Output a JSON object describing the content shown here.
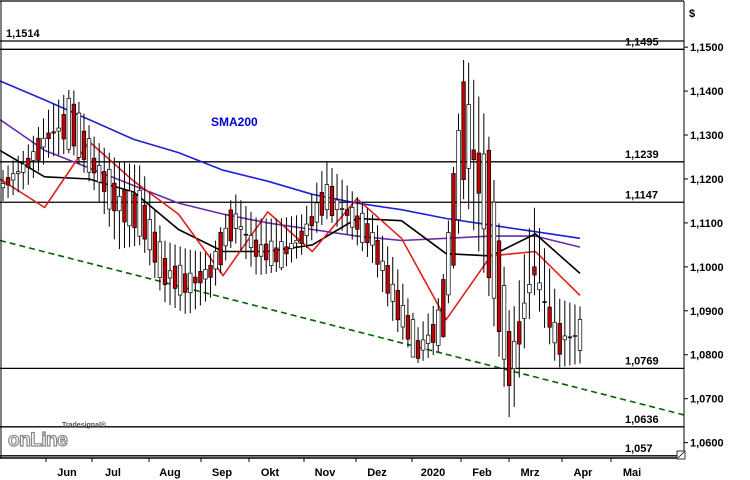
{
  "chart_data": {
    "type": "candlestick",
    "currency_label": "$",
    "y_ticks": [
      "1,1500",
      "1,1400",
      "1,1300",
      "1,1200",
      "1,1100",
      "1,1000",
      "1,0900",
      "1,0800",
      "1,0700",
      "1,0600"
    ],
    "x_ticks": [
      "Jun",
      "Jul",
      "Aug",
      "Sep",
      "Okt",
      "Nov",
      "Dez",
      "2020",
      "Feb",
      "Mrz",
      "Apr",
      "Mai"
    ],
    "ylim": [
      1.0565,
      1.1605
    ],
    "grid": false,
    "levels": [
      {
        "value": 1.1514,
        "label": "1,1514",
        "side": "left"
      },
      {
        "value": 1.1495,
        "label": "1,1495",
        "side": "right"
      },
      {
        "value": 1.1239,
        "label": "1,1239",
        "side": "right"
      },
      {
        "value": 1.1147,
        "label": "1,1147",
        "side": "right"
      },
      {
        "value": 1.0769,
        "label": "1,0769",
        "side": "right"
      },
      {
        "value": 1.0636,
        "label": "1,0636",
        "side": "right"
      },
      {
        "value": 1.057,
        "label": "1,057",
        "side": "right"
      }
    ],
    "annotations": [
      {
        "text": "SMA200",
        "color": "#0000cc"
      }
    ],
    "trendline": {
      "style": "dashed",
      "color": "#006400",
      "from": {
        "x": "Mai 2019",
        "y": 1.106
      },
      "to": {
        "x": "Mai 2020",
        "y": 1.0663
      }
    },
    "series": [
      {
        "name": "SMA200",
        "color": "#1f1fd8",
        "values": [
          1.1423,
          1.138,
          1.1335,
          1.129,
          1.126,
          1.122,
          1.1195,
          1.1165,
          1.1145,
          1.113,
          1.111,
          1.1095,
          1.108,
          1.1065
        ]
      },
      {
        "color": "#6a2ca8",
        "values": [
          1.1335,
          1.1265,
          1.1225,
          1.1185,
          1.1145,
          1.112,
          1.11,
          1.1085,
          1.107,
          1.106,
          1.1065,
          1.107,
          1.107,
          1.1045
        ]
      },
      {
        "color": "#000000",
        "values": [
          1.1265,
          1.1205,
          1.12,
          1.117,
          1.1085,
          1.1035,
          1.1035,
          1.105,
          1.111,
          1.1105,
          1.103,
          1.1025,
          1.1075,
          1.0985
        ]
      },
      {
        "color": "#e02020",
        "values": [
          1.12,
          1.1135,
          1.1285,
          1.1195,
          1.112,
          1.098,
          1.1125,
          1.1035,
          1.1155,
          1.1065,
          1.088,
          1.1025,
          1.1035,
          1.0935
        ]
      }
    ],
    "ohlc_points": [
      {
        "d": "Mai",
        "o": 1.118,
        "h": 1.122,
        "l": 1.115,
        "c": 1.119
      },
      {
        "d": "Jun",
        "o": 1.122,
        "h": 1.127,
        "l": 1.118,
        "c": 1.124
      },
      {
        "d": "Jun",
        "o": 1.129,
        "h": 1.136,
        "l": 1.125,
        "c": 1.131
      },
      {
        "d": "Jul",
        "o": 1.138,
        "h": 1.141,
        "l": 1.126,
        "c": 1.128
      },
      {
        "d": "Jul",
        "o": 1.124,
        "h": 1.129,
        "l": 1.117,
        "c": 1.121
      },
      {
        "d": "Aug",
        "o": 1.118,
        "h": 1.124,
        "l": 1.104,
        "c": 1.111
      },
      {
        "d": "Aug",
        "o": 1.116,
        "h": 1.123,
        "l": 1.105,
        "c": 1.108
      },
      {
        "d": "Sep",
        "o": 1.102,
        "h": 1.106,
        "l": 1.092,
        "c": 1.096
      },
      {
        "d": "Sep",
        "o": 1.098,
        "h": 1.104,
        "l": 1.089,
        "c": 1.094
      },
      {
        "d": "Okt",
        "o": 1.097,
        "h": 1.103,
        "l": 1.093,
        "c": 1.101
      },
      {
        "d": "Okt",
        "o": 1.109,
        "h": 1.117,
        "l": 1.106,
        "c": 1.113
      },
      {
        "d": "Nov",
        "o": 1.106,
        "h": 1.111,
        "l": 1.098,
        "c": 1.102
      },
      {
        "d": "Nov",
        "o": 1.104,
        "h": 1.111,
        "l": 1.099,
        "c": 1.101
      },
      {
        "d": "Dez",
        "o": 1.106,
        "h": 1.112,
        "l": 1.103,
        "c": 1.108
      },
      {
        "d": "Dez",
        "o": 1.113,
        "h": 1.124,
        "l": 1.111,
        "c": 1.119
      },
      {
        "d": "2020",
        "o": 1.113,
        "h": 1.118,
        "l": 1.107,
        "c": 1.111
      },
      {
        "d": "2020",
        "o": 1.109,
        "h": 1.112,
        "l": 1.101,
        "c": 1.104
      },
      {
        "d": "Feb",
        "o": 1.096,
        "h": 1.101,
        "l": 1.086,
        "c": 1.089
      },
      {
        "d": "Feb",
        "o": 1.083,
        "h": 1.086,
        "l": 1.078,
        "c": 1.079
      },
      {
        "d": "Feb",
        "o": 1.082,
        "h": 1.094,
        "l": 1.081,
        "c": 1.092
      },
      {
        "d": "Mrz",
        "o": 1.121,
        "h": 1.1495,
        "l": 1.117,
        "c": 1.145
      },
      {
        "d": "Mrz",
        "o": 1.129,
        "h": 1.132,
        "l": 1.095,
        "c": 1.099
      },
      {
        "d": "Mrz",
        "o": 1.082,
        "h": 1.087,
        "l": 1.0636,
        "c": 1.071
      },
      {
        "d": "Apr",
        "o": 1.097,
        "h": 1.114,
        "l": 1.094,
        "c": 1.102
      },
      {
        "d": "Apr",
        "o": 1.088,
        "h": 1.093,
        "l": 1.077,
        "c": 1.079
      },
      {
        "d": "Apr",
        "o": 1.081,
        "h": 1.091,
        "l": 1.078,
        "c": 1.088
      }
    ]
  },
  "branding": {
    "name": "Tradesignal®",
    "wordmark": "onLine"
  }
}
